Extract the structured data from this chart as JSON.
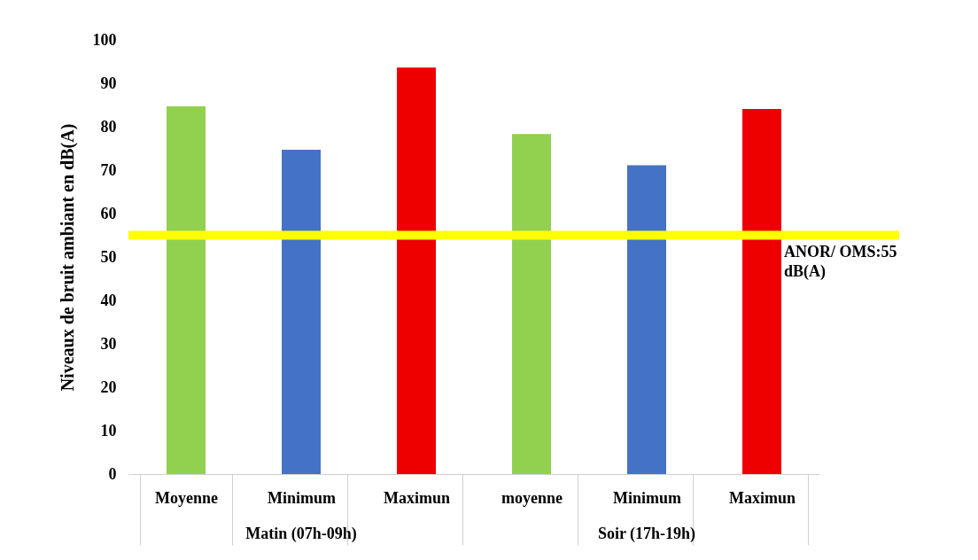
{
  "chart_data": {
    "type": "bar",
    "ylabel": "Niveaux de bruit  ambiant en dB(A)",
    "categories": [
      "Moyenne",
      "Minimum",
      "Maximun",
      "moyenne",
      "Minimum",
      "Maximun"
    ],
    "values": [
      84.7,
      74.7,
      93.6,
      78.3,
      71.1,
      84.1
    ],
    "colors": [
      "#92d050",
      "#4472c4",
      "#ee0000",
      "#92d050",
      "#4472c4",
      "#ee0000"
    ],
    "ylim": [
      0,
      100
    ],
    "yticks": [
      0,
      10,
      20,
      30,
      40,
      50,
      60,
      70,
      80,
      90,
      100
    ],
    "grid": false,
    "ref_lines": [
      {
        "axis": "y",
        "value": 55,
        "label": "ANOR/ OMS:55 dB(A)",
        "color": "#ffff00"
      }
    ],
    "annotations": [
      "Matin (07h-09h)",
      "Soir (17h-19h)"
    ]
  }
}
